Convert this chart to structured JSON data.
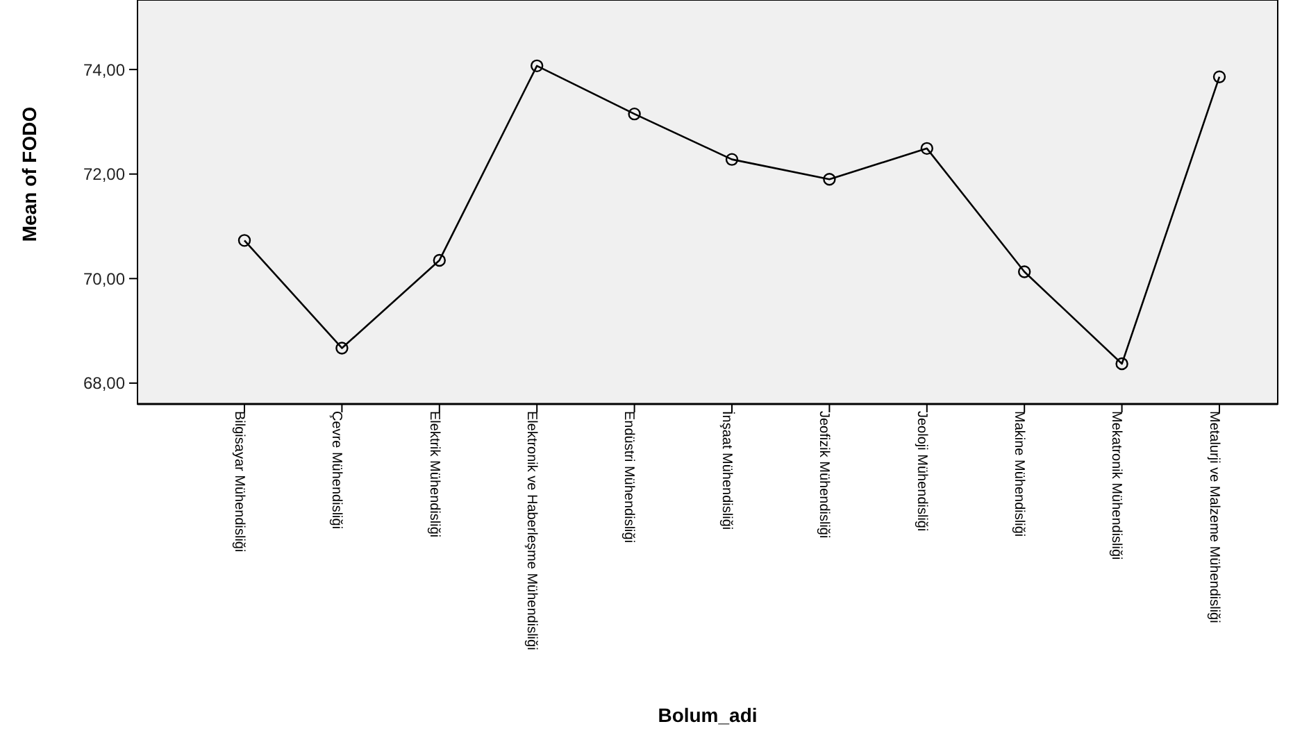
{
  "chart_data": {
    "type": "line",
    "xlabel": "Bolum_adi",
    "ylabel": "Mean of FODO",
    "categories": [
      "Bilgisayar Mühendisliği",
      "Çevre Mühendisliği",
      "Elektrik Mühendisliği",
      "Elektronik ve Haberleşme Mühendisliği",
      "Endüstri Mühendisliği",
      "İnşaat Mühendisliği",
      "Jeofizik Mühendisliği",
      "Jeoloji Mühendisliği",
      "Makine Mühendisliği",
      "Mekatronik Mühendisliği",
      "Metalurji ve Malzeme Mühendisliği"
    ],
    "values": [
      70.73,
      68.67,
      70.35,
      74.07,
      73.15,
      72.28,
      71.9,
      72.49,
      70.13,
      68.37,
      73.86
    ],
    "color": "#000000",
    "marker": "circle",
    "line_style": "solid",
    "grid": false,
    "ylim": [
      67.6,
      75.33
    ],
    "yticks": [
      {
        "value": 68,
        "label": "68,00"
      },
      {
        "value": 70,
        "label": "70,00"
      },
      {
        "value": 72,
        "label": "72,00"
      },
      {
        "value": 74,
        "label": "74,00"
      }
    ]
  }
}
